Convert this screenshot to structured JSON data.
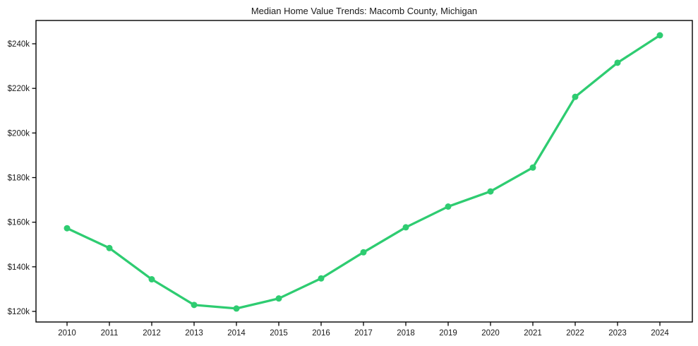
{
  "page": {
    "background_color": "#ffffff",
    "text_color": "#1a1a1a"
  },
  "chart_data": {
    "type": "line",
    "title": "Median Home Value Trends: Macomb County, Michigan",
    "xlabel": "",
    "ylabel": "",
    "x": [
      2010,
      2011,
      2012,
      2013,
      2014,
      2015,
      2016,
      2017,
      2018,
      2019,
      2020,
      2021,
      2022,
      2023,
      2024
    ],
    "x_tick_labels": [
      "2010",
      "2011",
      "2012",
      "2013",
      "2014",
      "2015",
      "2016",
      "2017",
      "2018",
      "2019",
      "2020",
      "2021",
      "2022",
      "2023",
      "2024"
    ],
    "series": [
      {
        "name": "Median Home Value",
        "values": [
          157300,
          148400,
          134400,
          122900,
          121300,
          125800,
          134800,
          146500,
          157700,
          167000,
          173800,
          184500,
          216200,
          231500,
          243800
        ]
      }
    ],
    "y_ticks": [
      {
        "value": 120000,
        "label": "$120k"
      },
      {
        "value": 140000,
        "label": "$140k"
      },
      {
        "value": 160000,
        "label": "$160k"
      },
      {
        "value": 180000,
        "label": "$180k"
      },
      {
        "value": 200000,
        "label": "$200k"
      },
      {
        "value": 220000,
        "label": "$220k"
      },
      {
        "value": 240000,
        "label": "$240k"
      }
    ],
    "ylim": [
      115300,
      250800
    ],
    "xlim": [
      2009.27,
      2024.77
    ],
    "grid": false,
    "legend_position": "none",
    "line_color": "#2ecc71",
    "marker": "circle",
    "marker_color": "#2ecc71",
    "axis_color": "#000000"
  }
}
